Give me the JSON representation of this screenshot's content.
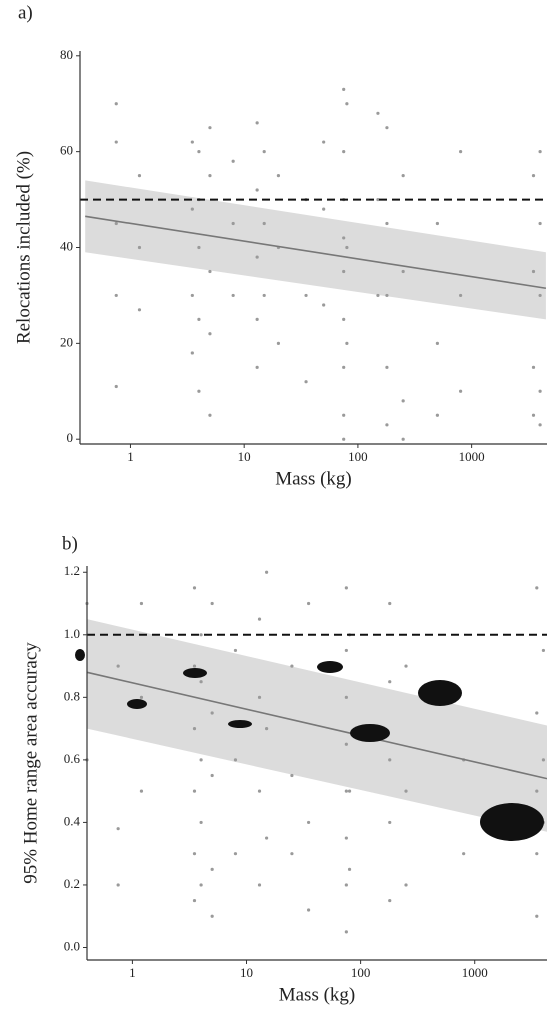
{
  "chart_data": [
    {
      "type": "scatter",
      "panel_label": "a)",
      "xlabel": "Mass (kg)",
      "ylabel": "Relocations included (%)",
      "xscale": "log",
      "xlim": [
        0.36,
        4600
      ],
      "ylim": [
        -1,
        81
      ],
      "xticks": [
        1,
        10,
        100,
        1000
      ],
      "yticks": [
        0,
        20,
        40,
        60,
        80
      ],
      "points": {
        "color": "#9a9a9a",
        "x": [
          0.75,
          0.75,
          0.75,
          0.75,
          0.75,
          1.2,
          1.2,
          1.2,
          3.5,
          3.5,
          3.5,
          3.5,
          4,
          4,
          4,
          4,
          4,
          5,
          5,
          5,
          5,
          5,
          8,
          8,
          8,
          13,
          13,
          13,
          13,
          13,
          15,
          15,
          15,
          20,
          20,
          20,
          35,
          35,
          35,
          50,
          50,
          50,
          75,
          75,
          75,
          75,
          75,
          75,
          75,
          75,
          75,
          80,
          80,
          80,
          150,
          150,
          150,
          180,
          180,
          180,
          180,
          180,
          250,
          250,
          250,
          250,
          500,
          500,
          500,
          800,
          800,
          800,
          3500,
          3500,
          3500,
          3500,
          4000,
          4000,
          4000,
          4000,
          4000
        ],
        "values": [
          70,
          62,
          45,
          30,
          11,
          55,
          40,
          27,
          62,
          48,
          30,
          18,
          60,
          50,
          40,
          25,
          10,
          65,
          55,
          35,
          22,
          5,
          58,
          45,
          30,
          66,
          52,
          38,
          25,
          15,
          60,
          45,
          30,
          55,
          40,
          20,
          50,
          30,
          12,
          62,
          48,
          28,
          73,
          60,
          50,
          42,
          35,
          25,
          15,
          5,
          0,
          70,
          40,
          20,
          68,
          50,
          30,
          65,
          45,
          30,
          15,
          3,
          55,
          35,
          8,
          0,
          45,
          20,
          5,
          60,
          30,
          10,
          55,
          35,
          15,
          5,
          60,
          45,
          30,
          10,
          3
        ]
      },
      "fit": {
        "color": "#777777",
        "x": [
          0.4,
          4500
        ],
        "values": [
          46.5,
          31.5
        ]
      },
      "band": {
        "color": "#dcdcdc",
        "x": [
          0.4,
          4500
        ],
        "lower": [
          39,
          25
        ],
        "upper": [
          54,
          39
        ]
      },
      "reference_line": 50
    },
    {
      "type": "scatter",
      "panel_label": "b)",
      "xlabel": "Mass (kg)",
      "ylabel": "95% Home range area accuracy",
      "xscale": "log",
      "xlim": [
        0.4,
        4300
      ],
      "ylim": [
        -0.04,
        1.22
      ],
      "xticks": [
        1,
        10,
        100,
        1000
      ],
      "yticks": [
        {
          "value": 0,
          "label": "0.0"
        },
        0.2,
        0.4,
        0.6,
        0.8,
        {
          "value": 1,
          "label": "1.0"
        },
        1.2
      ],
      "points": {
        "color": "#9a9a9a",
        "x": [
          0.4,
          0.4,
          0.75,
          0.75,
          0.75,
          1.2,
          1.2,
          1.2,
          3.5,
          3.5,
          3.5,
          3.5,
          3.5,
          3.5,
          4,
          4,
          4,
          4,
          4,
          5,
          5,
          5,
          5,
          5,
          8,
          8,
          8,
          13,
          13,
          13,
          13,
          15,
          15,
          15,
          25,
          25,
          25,
          35,
          35,
          35,
          75,
          75,
          75,
          75,
          75,
          75,
          75,
          75,
          80,
          80,
          80,
          180,
          180,
          180,
          180,
          180,
          250,
          250,
          250,
          800,
          800,
          3500,
          3500,
          3500,
          3500,
          3500,
          4000,
          4000,
          4000
        ],
        "values": [
          1.1,
          0.6,
          0.9,
          0.38,
          0.2,
          1.1,
          0.8,
          0.5,
          1.15,
          0.9,
          0.7,
          0.5,
          0.3,
          0.15,
          1.0,
          0.85,
          0.6,
          0.4,
          0.2,
          1.1,
          0.75,
          0.55,
          0.25,
          0.1,
          0.95,
          0.6,
          0.3,
          1.05,
          0.8,
          0.5,
          0.2,
          1.2,
          0.7,
          0.35,
          0.9,
          0.55,
          0.3,
          1.1,
          0.4,
          0.12,
          1.15,
          0.95,
          0.8,
          0.65,
          0.5,
          0.35,
          0.2,
          0.05,
          1.0,
          0.5,
          0.25,
          1.1,
          0.85,
          0.6,
          0.4,
          0.15,
          0.9,
          0.5,
          0.2,
          0.6,
          0.3,
          1.15,
          0.75,
          0.5,
          0.3,
          0.1,
          0.95,
          0.6,
          0.4
        ]
      },
      "fit": {
        "color": "#777777",
        "x": [
          0.4,
          4300
        ],
        "values": [
          0.88,
          0.54
        ]
      },
      "band": {
        "color": "#dcdcdc",
        "x": [
          0.4,
          4300
        ],
        "lower": [
          0.7,
          0.37
        ],
        "upper": [
          1.05,
          0.71
        ]
      },
      "reference_line": 1
    }
  ]
}
